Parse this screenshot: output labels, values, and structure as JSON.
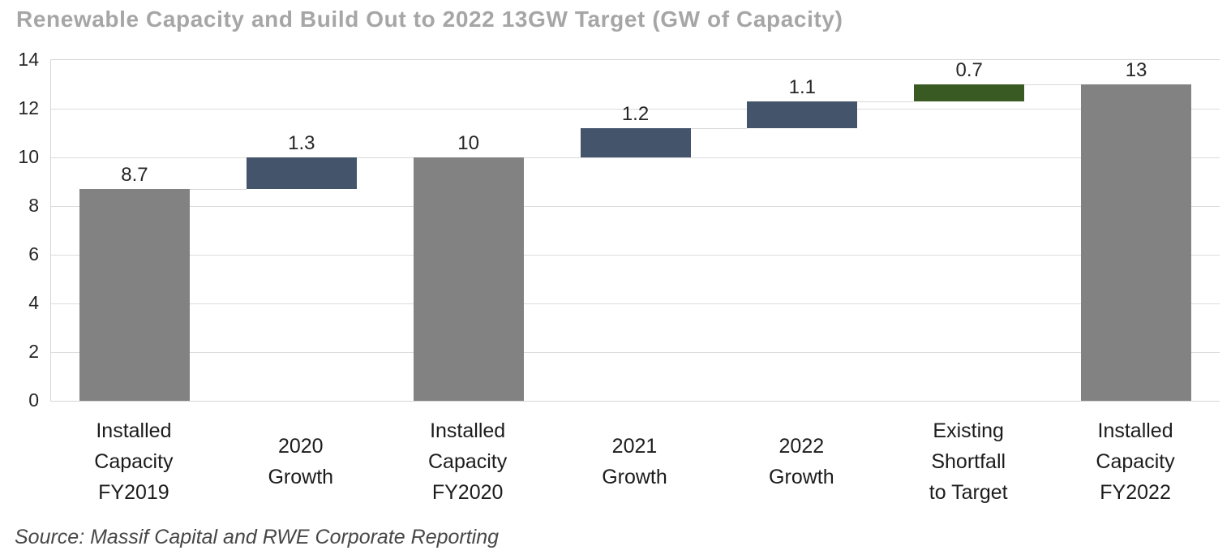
{
  "header": {
    "title": "Renewable Capacity and Build Out to 2022 13GW Target (GW of Capacity)",
    "title_color": "#a6a6a6"
  },
  "footer": {
    "source": "Source: Massif Capital and RWE Corporate Reporting"
  },
  "chart_data": {
    "type": "bar",
    "subtype": "waterfall",
    "title": "Renewable Capacity and Build Out to 2022 13GW Target (GW of Capacity)",
    "xlabel": "",
    "ylabel": "",
    "ylim": [
      0,
      14
    ],
    "yticks": [
      0,
      2,
      4,
      6,
      8,
      10,
      12,
      14
    ],
    "grid": true,
    "legend": "none",
    "colors": {
      "total": "#828282",
      "growth": "#44546a",
      "shortfall": "#3a5a23",
      "gridline": "#dcdcdc",
      "connector": "#d9d9d9",
      "value_label": "#262626"
    },
    "bars": [
      {
        "category": "Installed Capacity FY2019",
        "label_lines": [
          "Installed",
          "Capacity",
          "FY2019"
        ],
        "kind": "total",
        "base": 0,
        "value": 8.7,
        "top": 8.7,
        "display_value": "8.7"
      },
      {
        "category": "2020 Growth",
        "label_lines": [
          "2020",
          "Growth"
        ],
        "kind": "growth",
        "base": 8.7,
        "value": 1.3,
        "top": 10,
        "display_value": "1.3"
      },
      {
        "category": "Installed Capacity FY2020",
        "label_lines": [
          "Installed",
          "Capacity",
          "FY2020"
        ],
        "kind": "total",
        "base": 0,
        "value": 10,
        "top": 10,
        "display_value": "10"
      },
      {
        "category": "2021 Growth",
        "label_lines": [
          "2021",
          "Growth"
        ],
        "kind": "growth",
        "base": 10,
        "value": 1.2,
        "top": 11.2,
        "display_value": "1.2"
      },
      {
        "category": "2022 Growth",
        "label_lines": [
          "2022",
          "Growth"
        ],
        "kind": "growth",
        "base": 11.2,
        "value": 1.1,
        "top": 12.3,
        "display_value": "1.1"
      },
      {
        "category": "Existing Shortfall to Target",
        "label_lines": [
          "Existing",
          "Shortfall",
          "to Target"
        ],
        "kind": "shortfall",
        "base": 12.3,
        "value": 0.7,
        "top": 13,
        "display_value": "0.7"
      },
      {
        "category": "Installed Capacity FY2022",
        "label_lines": [
          "Installed",
          "Capacity",
          "FY2022"
        ],
        "kind": "total",
        "base": 0,
        "value": 13,
        "top": 13,
        "display_value": "13"
      }
    ],
    "connectors": [
      {
        "from": 0,
        "to": 1,
        "level": 8.7
      },
      {
        "from": 1,
        "to": 2,
        "level": 10
      },
      {
        "from": 2,
        "to": 3,
        "level": 10
      },
      {
        "from": 3,
        "to": 4,
        "level": 11.2
      },
      {
        "from": 4,
        "to": 5,
        "level": 12.3
      },
      {
        "from": 5,
        "to": 6,
        "level": 13
      }
    ]
  }
}
